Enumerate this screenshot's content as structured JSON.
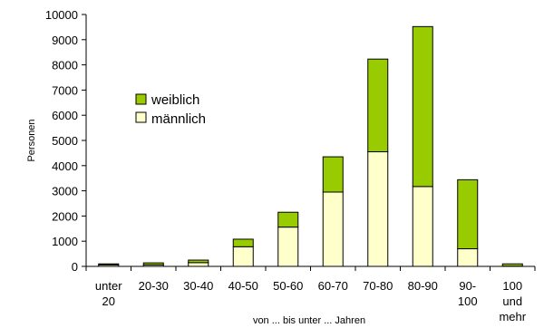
{
  "chart_data": {
    "type": "bar",
    "stacked": true,
    "categories": [
      [
        "unter",
        "20"
      ],
      [
        "20-30"
      ],
      [
        "30-40"
      ],
      [
        "40-50"
      ],
      [
        "50-60"
      ],
      [
        "60-70"
      ],
      [
        "70-80"
      ],
      [
        "80-90"
      ],
      [
        "90-",
        "100"
      ],
      [
        "100",
        "und",
        "mehr"
      ]
    ],
    "series": [
      {
        "name": "männlich",
        "color": "#ffffcc",
        "values": [
          60,
          60,
          150,
          780,
          1560,
          2950,
          4550,
          3170,
          700,
          10
        ]
      },
      {
        "name": "weiblich",
        "color": "#99cc00",
        "values": [
          40,
          80,
          100,
          300,
          590,
          1400,
          3680,
          6350,
          2740,
          90
        ]
      }
    ],
    "legend": [
      "weiblich",
      "männlich"
    ],
    "xlabel": "von ... bis unter ... Jahren",
    "ylabel": "Personen",
    "ylim": [
      0,
      10000
    ],
    "yticks": [
      "0",
      "1000",
      "2000",
      "3000",
      "4000",
      "5000",
      "6000",
      "7000",
      "8000",
      "9000",
      "10000"
    ],
    "grid": false,
    "legend_position": "upper-left"
  }
}
